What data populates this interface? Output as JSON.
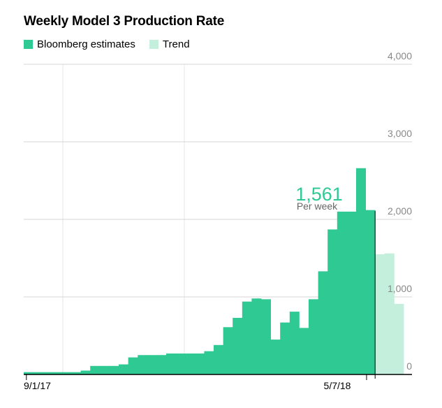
{
  "header": {
    "title": "Weekly Model 3 Production Rate"
  },
  "legend": [
    {
      "label": "Bloomberg estimates",
      "color": "#2fc993"
    },
    {
      "label": "Trend",
      "color": "#c3efdc"
    }
  ],
  "chart_data": {
    "type": "area",
    "title": "Weekly Model 3 Production Rate",
    "xlabel": "",
    "ylabel": "",
    "ylim": [
      0,
      4000
    ],
    "y_ticks": [
      "4,000",
      "3,000",
      "2,000",
      "1,000",
      "0"
    ],
    "x_ticks": [
      "9/1/17",
      "5/7/18"
    ],
    "grid": true,
    "legend_position": "top-left",
    "series": [
      {
        "name": "Bloomberg estimates",
        "color": "#2fc993",
        "x": [
          "8/28/17",
          "9/4/17",
          "9/11/17",
          "9/18/17",
          "9/25/17",
          "10/2/17",
          "10/9/17",
          "10/16/17",
          "10/23/17",
          "10/30/17",
          "11/6/17",
          "11/13/17",
          "11/20/17",
          "11/27/17",
          "12/4/17",
          "12/11/17",
          "12/18/17",
          "12/25/17",
          "1/1/18",
          "1/8/18",
          "1/15/18",
          "1/22/18",
          "1/29/18",
          "2/5/18",
          "2/12/18",
          "2/19/18",
          "2/26/18",
          "3/5/18",
          "3/12/18",
          "3/19/18",
          "3/26/18",
          "4/2/18",
          "4/9/18",
          "4/16/18",
          "4/23/18",
          "4/30/18",
          "5/7/18"
        ],
        "values": [
          30,
          30,
          30,
          30,
          30,
          30,
          50,
          110,
          110,
          110,
          130,
          220,
          250,
          250,
          250,
          270,
          270,
          270,
          270,
          300,
          380,
          610,
          730,
          940,
          980,
          970,
          450,
          670,
          810,
          600,
          970,
          1330,
          1870,
          2100,
          2100,
          2660,
          2120
        ]
      },
      {
        "name": "Trend",
        "color": "#c3efdc",
        "x": [
          "5/14/18",
          "5/21/18",
          "5/28/18"
        ],
        "values": [
          1550,
          1561,
          910
        ]
      }
    ],
    "annotations": [
      {
        "value": "1,561",
        "text": "Per week"
      }
    ]
  }
}
